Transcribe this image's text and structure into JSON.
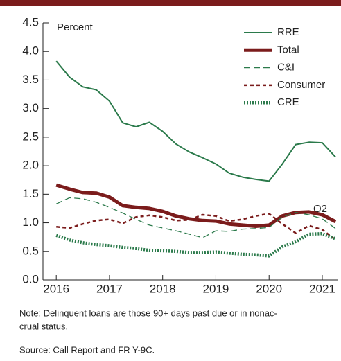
{
  "chart_data": {
    "type": "line",
    "y_label": "Percent",
    "annotation": "Q2",
    "x": [
      2016,
      2016.25,
      2016.5,
      2016.75,
      2017,
      2017.25,
      2017.5,
      2017.75,
      2018,
      2018.25,
      2018.5,
      2018.75,
      2019,
      2019.25,
      2019.5,
      2019.75,
      2020,
      2020.25,
      2020.5,
      2020.75,
      2021,
      2021.25
    ],
    "xlim": [
      2015.75,
      2021.3
    ],
    "xticks": [
      2016,
      2017,
      2018,
      2019,
      2020,
      2021
    ],
    "ylim": [
      0,
      4.5
    ],
    "yticks": [
      {
        "value": 0,
        "label": "0.0"
      },
      0.5,
      {
        "value": 1,
        "label": "1.0"
      },
      1.5,
      {
        "value": 2,
        "label": "2.0"
      },
      2.5,
      {
        "value": 3,
        "label": "3.0"
      },
      3.5,
      {
        "value": 4,
        "label": "4.0"
      },
      4.5
    ],
    "series": [
      {
        "name": "RRE",
        "color": "#2b7a4b",
        "line_style": "solid",
        "width": 2,
        "values": [
          3.83,
          3.55,
          3.38,
          3.33,
          3.13,
          2.75,
          2.68,
          2.76,
          2.6,
          2.38,
          2.24,
          2.14,
          2.03,
          1.87,
          1.8,
          1.76,
          1.73,
          2.03,
          2.37,
          2.41,
          2.4,
          2.15
        ]
      },
      {
        "name": "Total",
        "color": "#7b1c1c",
        "line_style": "solid",
        "width": 5,
        "values": [
          1.66,
          1.59,
          1.53,
          1.52,
          1.45,
          1.3,
          1.27,
          1.25,
          1.2,
          1.12,
          1.07,
          1.04,
          1.03,
          0.98,
          0.96,
          0.94,
          0.96,
          1.12,
          1.18,
          1.19,
          1.14,
          1.02
        ]
      },
      {
        "name": "C&I",
        "color": "#2b7a4b",
        "line_style": "dashed",
        "width": 1.3,
        "values": [
          1.33,
          1.44,
          1.42,
          1.36,
          1.27,
          1.17,
          1.06,
          0.96,
          0.91,
          0.86,
          0.8,
          0.74,
          0.86,
          0.85,
          0.89,
          0.9,
          0.92,
          1.1,
          1.18,
          1.14,
          1.07,
          0.9
        ]
      },
      {
        "name": "Consumer",
        "color": "#7b1c1c",
        "line_style": "dashed",
        "width": 2.5,
        "values": [
          0.93,
          0.91,
          0.98,
          1.04,
          1.06,
          0.99,
          1.1,
          1.13,
          1.1,
          1.04,
          1.05,
          1.14,
          1.12,
          1.03,
          1.06,
          1.12,
          1.16,
          0.98,
          0.82,
          0.95,
          0.88,
          0.7
        ]
      },
      {
        "name": "CRE",
        "color": "#2b7a4b",
        "line_style": "dotted",
        "width": 4.5,
        "values": [
          0.78,
          0.7,
          0.65,
          0.62,
          0.6,
          0.57,
          0.55,
          0.52,
          0.51,
          0.5,
          0.48,
          0.48,
          0.49,
          0.47,
          0.45,
          0.44,
          0.42,
          0.58,
          0.67,
          0.8,
          0.81,
          0.72
        ]
      }
    ],
    "note_lines": [
      "Note: Delinquent loans are those 90+ days past due or in nonac-",
      "crual status."
    ],
    "source": "Source: Call Report and FR Y-9C."
  }
}
